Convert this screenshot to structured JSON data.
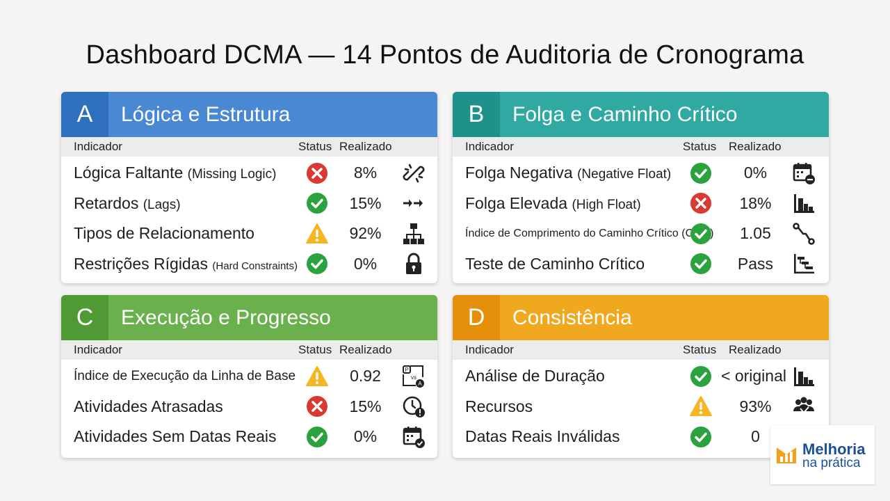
{
  "title": "Dashboard DCMA — 14 Pontos de Auditoria de Cronograma",
  "columns": {
    "indicator": "Indicador",
    "status": "Status",
    "realized": "Realizado"
  },
  "sections": [
    {
      "letter": "A",
      "name": "Lógica e Estrutura",
      "color": "#4a88d4",
      "rows": [
        {
          "name": "Lógica Faltante",
          "sub": "(Missing Logic)",
          "status": "fail",
          "value": "8%",
          "icon": "broken-link-icon"
        },
        {
          "name": "Retardos",
          "sub": "(Lags)",
          "status": "pass",
          "value": "15%",
          "icon": "arrows-right-icon"
        },
        {
          "name": "Tipos de Relacionamento",
          "sub": "",
          "status": "warn",
          "value": "92%",
          "icon": "hierarchy-icon"
        },
        {
          "name": "Restrições Rígidas",
          "sub": "(Hard Constraints)",
          "status": "pass",
          "value": "0%",
          "icon": "lock-icon"
        }
      ]
    },
    {
      "letter": "B",
      "name": "Folga e Caminho Crítico",
      "color": "#2fa9a1",
      "rows": [
        {
          "name": "Folga Negativa",
          "sub": "(Negative Float)",
          "status": "pass",
          "value": "0%",
          "icon": "calendar-minus-icon"
        },
        {
          "name": "Folga Elevada",
          "sub": "(High Float)",
          "status": "fail",
          "value": "18%",
          "icon": "bar-chart-icon"
        },
        {
          "name": "Índice de Comprimento do Caminho Crítico (CPLI)",
          "sub": "",
          "status": "pass",
          "value": "1.05",
          "icon": "path-icon"
        },
        {
          "name": "Teste de Caminho Crítico",
          "sub": "",
          "status": "pass",
          "value": "Pass",
          "icon": "gantt-icon"
        }
      ]
    },
    {
      "letter": "C",
      "name": "Execução e Progresso",
      "color": "#6ab04c",
      "rows": [
        {
          "name": "Índice de Execução da Linha de Base",
          "sub": "",
          "status": "warn",
          "value": "0.92",
          "icon": "plan-vs-actual-icon",
          "icon_text_p": "P",
          "icon_text_vs": "vs",
          "icon_text_a": "A"
        },
        {
          "name": "Atividades Atrasadas",
          "sub": "",
          "status": "fail",
          "value": "15%",
          "icon": "clock-alert-icon"
        },
        {
          "name": "Atividades Sem Datas Reais",
          "sub": "",
          "status": "pass",
          "value": "0%",
          "icon": "calendar-check-icon"
        }
      ]
    },
    {
      "letter": "D",
      "name": "Consistência",
      "color": "#f0a81f",
      "rows": [
        {
          "name": "Análise de Duração",
          "sub": "",
          "status": "pass",
          "value": "< original",
          "icon": "bar-chart-icon"
        },
        {
          "name": "Recursos",
          "sub": "",
          "status": "warn",
          "value": "93%",
          "icon": "people-icon"
        },
        {
          "name": "Datas Reais Inválidas",
          "sub": "",
          "status": "pass",
          "value": "0",
          "icon": "calendar-check-icon"
        }
      ]
    }
  ],
  "logo": {
    "line1": "Melhoria",
    "line2": "na prática"
  }
}
